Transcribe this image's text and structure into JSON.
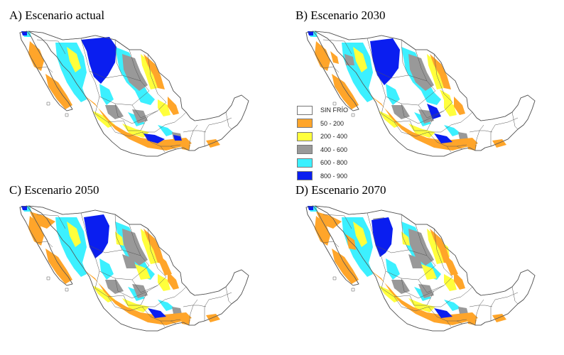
{
  "panels": [
    {
      "title": "A) Escenario actual"
    },
    {
      "title": "B) Escenario 2030"
    },
    {
      "title": "C) Escenario 2050"
    },
    {
      "title": "D) Escenario 2070"
    }
  ],
  "legend": [
    {
      "label": "SIN FRÍO",
      "color": "#ffffff"
    },
    {
      "label": "50 - 200",
      "color": "#ffa52a"
    },
    {
      "label": "200 - 400",
      "color": "#ffff3c"
    },
    {
      "label": "400 - 600",
      "color": "#999999"
    },
    {
      "label": "600 - 800",
      "color": "#3cf0ff"
    },
    {
      "label": "800 - 900",
      "color": "#0a1ef0"
    }
  ]
}
